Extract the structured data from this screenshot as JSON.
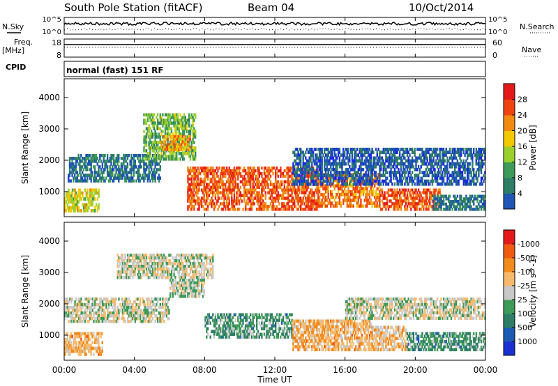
{
  "header": {
    "station": "South Pole Station (fitACF)",
    "beam": "Beam 04",
    "date": "10/Oct/2014"
  },
  "left_labels": {
    "nsky": "N.Sky",
    "freq": "Freq.",
    "mhz": "[MHz]",
    "cpid": "CPID"
  },
  "right_labels": {
    "nsearch": "N.Search",
    "nave": "Nave"
  },
  "noise_axis": {
    "top": "10^5",
    "bottom": "10^0"
  },
  "freq_axis": {
    "top": "18",
    "bottom": "8"
  },
  "nave_axis": {
    "top": "60",
    "bottom": "0"
  },
  "cpid_text": "normal (fast) 151 RF",
  "x_axis": {
    "label": "Time UT",
    "ticks": [
      "00:00",
      "04:00",
      "08:00",
      "12:00",
      "16:00",
      "20:00",
      "00:00"
    ]
  },
  "power_panel": {
    "ylabel": "Slant Range [km]",
    "yticks": [
      "1000",
      "2000",
      "3000",
      "4000"
    ],
    "colorbar_label": "Power [dB]",
    "colorbar_ticks": [
      "4",
      "8",
      "12",
      "16",
      "20",
      "24",
      "28"
    ]
  },
  "velocity_panel": {
    "ylabel": "Slant Range [km]",
    "yticks": [
      "1000",
      "2000",
      "3000",
      "4000"
    ],
    "colorbar_label": "Velocity [m s^-1]",
    "colorbar_ticks": [
      "1000",
      "500",
      "100",
      "25",
      "-25",
      "-100",
      "-500",
      "-1000"
    ]
  },
  "colors": {
    "power_scale": [
      "#1a28e6",
      "#1f55b3",
      "#2e7d66",
      "#3e9a59",
      "#9ad02e",
      "#f2c800",
      "#f08a10",
      "#f04410",
      "#e41a1a"
    ],
    "velocity_scale": [
      "#1a2fd0",
      "#1a5ab3",
      "#2e7d66",
      "#3e9a59",
      "#c8c8c8",
      "#f7b96b",
      "#f28a1c",
      "#f05a10",
      "#e41a1a"
    ]
  },
  "chart_data": [
    {
      "type": "heatmap",
      "title": "Power",
      "xlabel": "Time UT",
      "ylabel": "Slant Range [km]",
      "xlim": [
        0,
        24
      ],
      "ylim": [
        200,
        4600
      ],
      "colorbar": {
        "label": "Power [dB]",
        "range": [
          0,
          32
        ]
      },
      "bands": [
        {
          "t0": 0.0,
          "t1": 2.0,
          "r0": 350,
          "r1": 1100,
          "v": 18
        },
        {
          "t0": 0.2,
          "t1": 5.5,
          "r0": 1300,
          "r1": 2200,
          "v": 8
        },
        {
          "t0": 4.5,
          "t1": 7.5,
          "r0": 2000,
          "r1": 3500,
          "v": 14
        },
        {
          "t0": 5.5,
          "t1": 7.2,
          "r0": 2300,
          "r1": 2800,
          "v": 22
        },
        {
          "t0": 7.0,
          "t1": 14.5,
          "r0": 400,
          "r1": 1800,
          "v": 26
        },
        {
          "t0": 14.5,
          "t1": 18.0,
          "r0": 500,
          "r1": 1600,
          "v": 24
        },
        {
          "t0": 18.0,
          "t1": 21.5,
          "r0": 400,
          "r1": 1100,
          "v": 26
        },
        {
          "t0": 13.0,
          "t1": 24.0,
          "r0": 1200,
          "r1": 2400,
          "v": 6
        },
        {
          "t0": 21.0,
          "t1": 24.0,
          "r0": 400,
          "r1": 900,
          "v": 8
        }
      ]
    },
    {
      "type": "heatmap",
      "title": "Velocity",
      "xlabel": "Time UT",
      "ylabel": "Slant Range [km]",
      "xlim": [
        0,
        24
      ],
      "ylim": [
        200,
        4600
      ],
      "colorbar": {
        "label": "Velocity [m s^-1]",
        "range": [
          -1000,
          1000
        ]
      },
      "bands": [
        {
          "t0": 0.0,
          "t1": 2.2,
          "r0": 350,
          "r1": 1100,
          "v": -300
        },
        {
          "t0": 0.0,
          "t1": 6.0,
          "r0": 1400,
          "r1": 2200,
          "v": 0
        },
        {
          "t0": 3.0,
          "t1": 8.5,
          "r0": 2800,
          "r1": 3600,
          "v": 0
        },
        {
          "t0": 6.0,
          "t1": 8.0,
          "r0": 2200,
          "r1": 2800,
          "v": 50
        },
        {
          "t0": 8.0,
          "t1": 13.0,
          "r0": 900,
          "r1": 1700,
          "v": 300
        },
        {
          "t0": 13.0,
          "t1": 17.5,
          "r0": 500,
          "r1": 1500,
          "v": -300
        },
        {
          "t0": 17.5,
          "t1": 19.5,
          "r0": 500,
          "r1": 1300,
          "v": -200
        },
        {
          "t0": 19.5,
          "t1": 24.0,
          "r0": 500,
          "r1": 1100,
          "v": 300
        },
        {
          "t0": 16.0,
          "t1": 24.0,
          "r0": 1500,
          "r1": 2200,
          "v": 0
        }
      ]
    }
  ]
}
